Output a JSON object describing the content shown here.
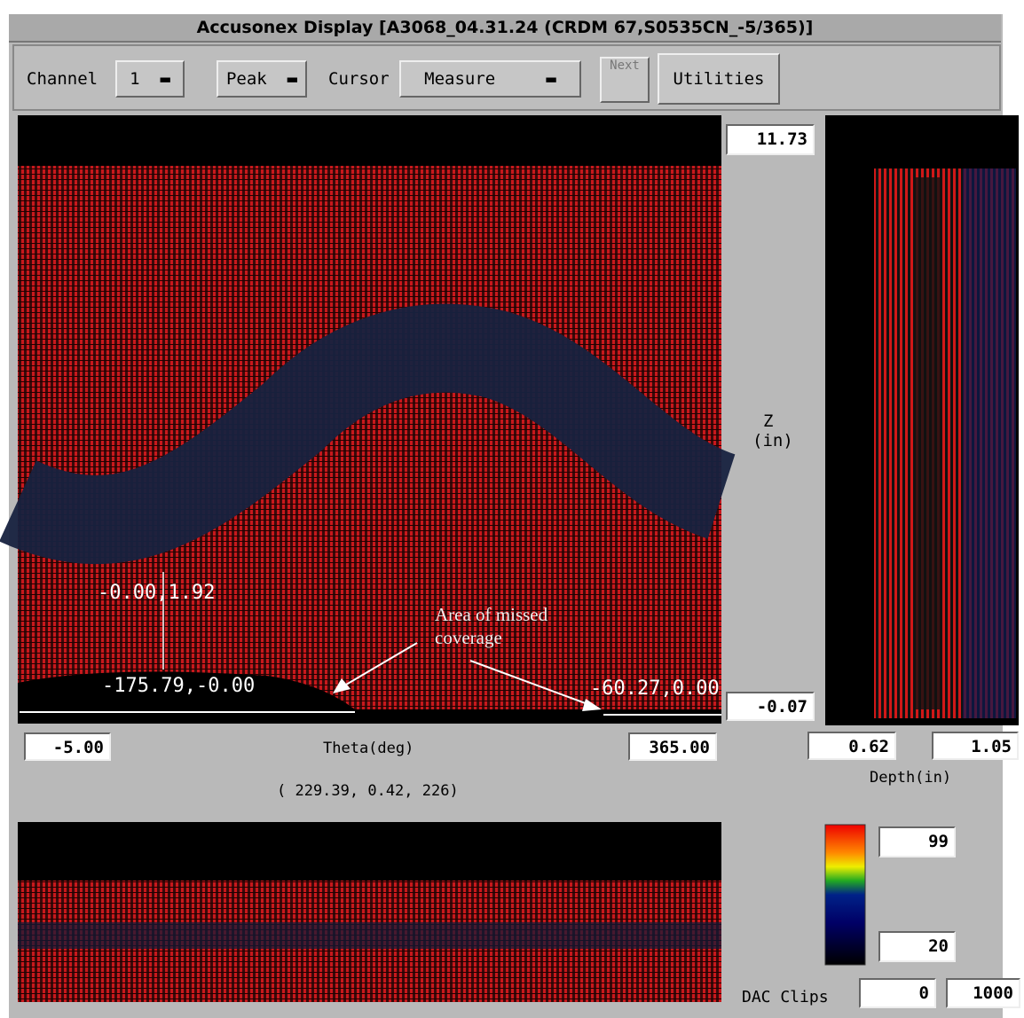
{
  "window": {
    "title": "Accusonex Display [A3068_04.31.24 (CRDM 67,S0535CN_-5/365)]"
  },
  "toolbar": {
    "channel_label": "Channel",
    "channel_value": "1",
    "mode": "Peak",
    "cursor_label": "Cursor",
    "cursor_mode": "Measure",
    "next": "Next",
    "utilities": "Utilities"
  },
  "main_view": {
    "z_max": "11.73",
    "z_min": "-0.07",
    "z_label": "Z",
    "z_unit": "(in)",
    "cursor_label": "-0.00,1.92",
    "left_edge_label": "-175.79,-0.00",
    "right_edge_label": "-60.27,0.00",
    "annotation": [
      "Area of missed",
      "coverage"
    ],
    "theta_min": "-5.00",
    "theta_label": "Theta(deg)",
    "theta_max": "365.00",
    "readout": "( 229.39, 0.42, 226)"
  },
  "side_view": {
    "depth_min": "0.62",
    "depth_max": "1.05",
    "depth_label": "Depth(in)"
  },
  "color_scale": {
    "max": "99",
    "min": "20",
    "dac_label": "DAC Clips",
    "dac_min": "0",
    "dac_max": "1000"
  }
}
